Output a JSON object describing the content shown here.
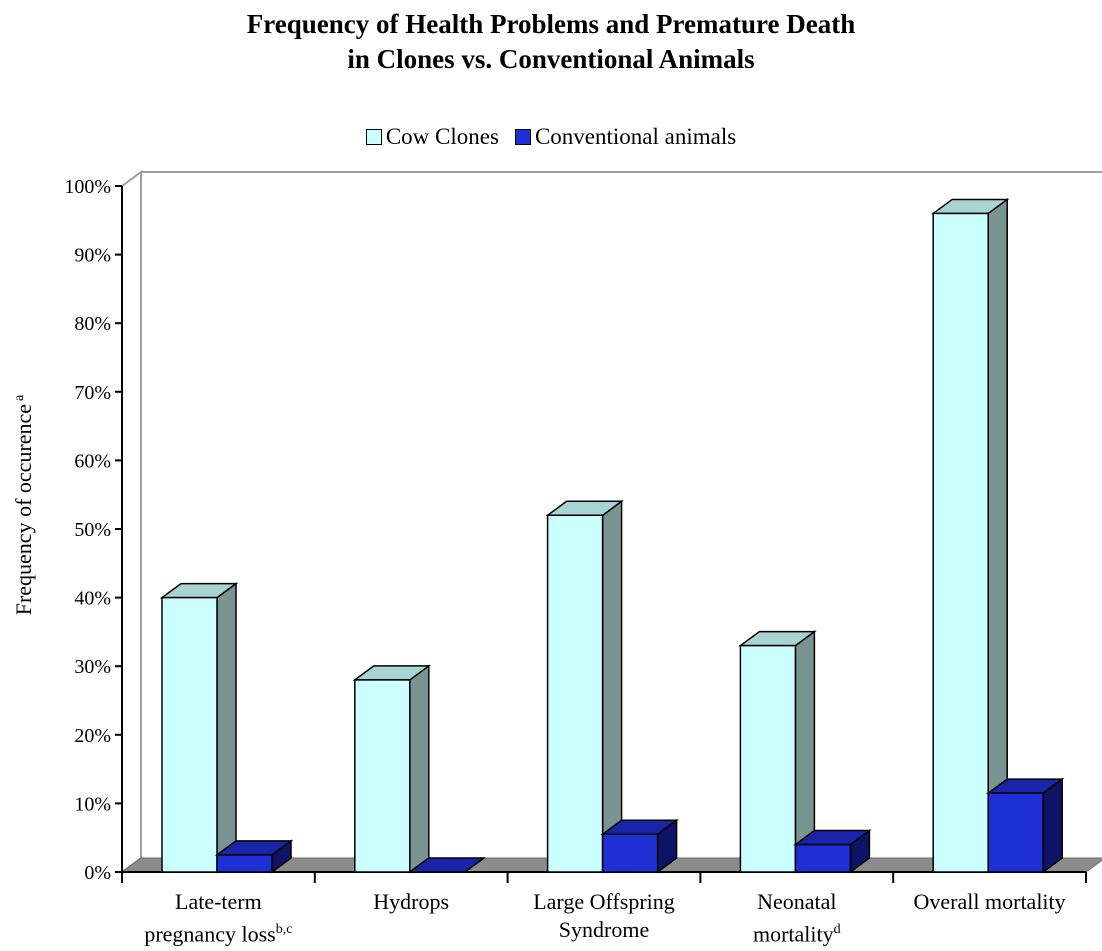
{
  "chart_data": {
    "type": "bar",
    "title_lines": [
      "Frequency of Health Problems and Premature Death",
      "in Clones vs. Conventional Animals"
    ],
    "ylabel": "Frequency of occurence",
    "ylabel_sup": "a",
    "ylim": [
      0,
      100
    ],
    "yticks": [
      "0%",
      "10%",
      "20%",
      "30%",
      "40%",
      "50%",
      "60%",
      "70%",
      "80%",
      "90%",
      "100%"
    ],
    "legend_position": "top-center",
    "categories": [
      {
        "lines": [
          "Late-term",
          "pregnancy loss"
        ],
        "sup": "b,c"
      },
      {
        "lines": [
          "Hydrops"
        ],
        "sup": ""
      },
      {
        "lines": [
          "Large Offspring",
          "Syndrome"
        ],
        "sup": ""
      },
      {
        "lines": [
          "Neonatal",
          "mortality"
        ],
        "sup": "d"
      },
      {
        "lines": [
          "Overall mortality"
        ],
        "sup": ""
      }
    ],
    "series": [
      {
        "name": "Cow Clones",
        "color": "#ccffff",
        "top_color": "#a8d4d4",
        "side_color": "#7a9494",
        "values": [
          40,
          28,
          52,
          33,
          96
        ]
      },
      {
        "name": "Conventional animals",
        "color": "#1f2fd6",
        "top_color": "#1a24a8",
        "side_color": "#0d1466",
        "values": [
          2.5,
          0,
          5.5,
          4,
          11.5
        ]
      }
    ],
    "grid": false
  }
}
